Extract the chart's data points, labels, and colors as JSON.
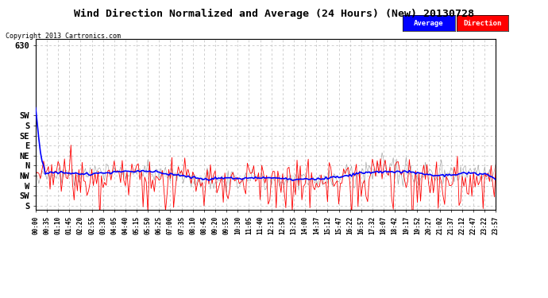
{
  "title": "Wind Direction Normalized and Average (24 Hours) (New) 20130728",
  "copyright": "Copyright 2013 Cartronics.com",
  "legend_labels": [
    "Average",
    "Direction"
  ],
  "legend_colors": [
    "#0000ff",
    "#ff0000"
  ],
  "background_color": "#ffffff",
  "plot_background": "#ffffff",
  "grid_color": "#bbbbbb",
  "y_ticks": [
    630,
    315,
    270,
    225,
    180,
    135,
    90,
    45,
    0,
    -45,
    -90
  ],
  "y_tick_labels": [
    "630",
    "SW",
    "S",
    "SE",
    "E",
    "NE",
    "N",
    "NW",
    "W",
    "SW",
    "S"
  ],
  "ylim": [
    -110,
    660
  ],
  "num_points": 288,
  "x_tick_labels": [
    "00:00",
    "00:35",
    "01:10",
    "01:45",
    "02:20",
    "02:55",
    "03:30",
    "04:05",
    "04:40",
    "05:15",
    "05:50",
    "06:25",
    "07:00",
    "07:35",
    "08:10",
    "08:45",
    "09:20",
    "09:55",
    "10:30",
    "11:05",
    "11:40",
    "12:15",
    "12:50",
    "13:25",
    "14:00",
    "14:37",
    "15:12",
    "15:47",
    "16:22",
    "16:57",
    "17:32",
    "18:07",
    "18:42",
    "19:17",
    "19:52",
    "20:27",
    "21:02",
    "21:37",
    "22:12",
    "22:47",
    "23:22",
    "23:57"
  ]
}
